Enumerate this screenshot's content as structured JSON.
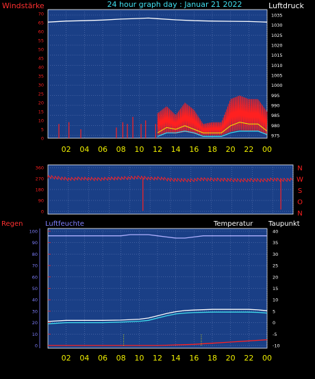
{
  "colors": {
    "bg": "#000000",
    "plot_bg": "#1a3f86",
    "grid": "#6f86bf",
    "red": "#ff2020",
    "yellow": "#f0f000",
    "white": "#ffffff",
    "cyan": "#40e0f0",
    "blue_axis": "#8080ff",
    "dark_red_axis": "#ff3030"
  },
  "header": {
    "left_label": "Windstärke",
    "title": "24 hour graph day : Januar 21 2022",
    "right_label": "Luftdruck"
  },
  "x_axis": {
    "ticks": [
      "02",
      "04",
      "06",
      "08",
      "10",
      "12",
      "14",
      "16",
      "18",
      "20",
      "22",
      "00"
    ]
  },
  "chart_data": [
    {
      "type": "line",
      "id": "wind_pressure",
      "title": "24 hour graph day : Januar 21 2022",
      "y_left": {
        "label": "Windstärke",
        "min": 0,
        "max": 70,
        "ticks": [
          0,
          5,
          10,
          15,
          20,
          25,
          30,
          35,
          40,
          45,
          50,
          55,
          60,
          65,
          70
        ]
      },
      "y_right": {
        "label": "Luftdruck",
        "min": 975,
        "max": 1035,
        "ticks": [
          975,
          980,
          985,
          990,
          995,
          1000,
          1005,
          1010,
          1015,
          1020,
          1025,
          1030,
          1035
        ]
      },
      "pressure": {
        "hours": [
          0,
          2,
          4,
          6,
          8,
          10,
          11,
          12,
          14,
          16,
          18,
          20,
          22,
          24
        ],
        "values": [
          1031.5,
          1032,
          1032.2,
          1032.5,
          1033,
          1033.3,
          1033.5,
          1033.2,
          1032.6,
          1032.2,
          1032,
          1031.9,
          1031.8,
          1031.5
        ]
      },
      "gust_spikes": {
        "hours": [
          1.2,
          2.3,
          3.6,
          7.5,
          8.2,
          8.7,
          9.3,
          10.2,
          10.7,
          11.8
        ],
        "values": [
          8,
          9,
          5,
          6,
          9,
          8,
          12,
          8,
          10,
          8
        ]
      },
      "wind_envelope": {
        "hours": [
          12,
          13,
          14,
          15,
          16,
          17,
          18,
          19,
          20,
          21,
          22,
          23,
          24
        ],
        "values": [
          14,
          18,
          13,
          20,
          16,
          8,
          9,
          9,
          22,
          24,
          22,
          22,
          15
        ]
      },
      "wind_base": {
        "hours": [
          12,
          13,
          14,
          15,
          16,
          17,
          18,
          19,
          20,
          21,
          22,
          23,
          24
        ],
        "values": [
          3,
          6,
          5,
          7,
          5,
          3,
          3,
          3,
          7,
          9,
          8,
          8,
          4
        ]
      },
      "wind_avg": {
        "hours": [
          12,
          13,
          14,
          15,
          16,
          17,
          18,
          19,
          20,
          21,
          22,
          23,
          24
        ],
        "values": [
          1,
          3,
          3,
          4,
          3,
          1,
          1,
          1,
          3,
          4,
          4,
          4,
          2
        ]
      }
    },
    {
      "type": "scatter",
      "id": "wind_direction",
      "y_range": [
        0,
        360
      ],
      "y_ticks": [
        0,
        90,
        180,
        270,
        360
      ],
      "compass": [
        "N",
        "W",
        "S",
        "O",
        "N"
      ],
      "base_direction": 270,
      "direction_series": {
        "hours": [
          0,
          1,
          2,
          3,
          4,
          5,
          6,
          7,
          8,
          9,
          10,
          11,
          12,
          13,
          14,
          15,
          16,
          17,
          18,
          19,
          20,
          21,
          22,
          23,
          24
        ],
        "values": [
          285,
          275,
          265,
          270,
          268,
          265,
          270,
          272,
          275,
          280,
          270,
          272,
          260,
          258,
          255,
          265,
          262,
          260,
          258,
          255,
          258,
          255,
          262,
          258,
          262
        ]
      },
      "dips": {
        "hours": [
          9.3,
          22.8
        ],
        "values": [
          5,
          15
        ]
      }
    },
    {
      "type": "line",
      "id": "rain_humidity_temp",
      "series_names": {
        "regen": "Regen",
        "luftfeuchte": "Luftfeuchte",
        "temperatur": "Temperatur",
        "taupunkt": "Taupunkt"
      },
      "y_regen": {
        "min": 0,
        "max": 100,
        "ticks": [
          0,
          10,
          20,
          30,
          40,
          50,
          60,
          70,
          80,
          90,
          100
        ]
      },
      "y_luftfeuchte": {
        "min": 0,
        "max": 100
      },
      "y_temp": {
        "min": -10,
        "max": 40,
        "ticks": [
          -10,
          -5,
          0,
          5,
          10,
          15,
          20,
          25,
          30,
          35,
          40
        ]
      },
      "luftfeuchte": {
        "hours": [
          0,
          2,
          4,
          6,
          8,
          9,
          10,
          11,
          12,
          13,
          14,
          15,
          16,
          17,
          18,
          20,
          22,
          24
        ],
        "values": [
          96,
          96,
          96,
          96,
          96,
          97,
          97,
          97,
          96,
          95,
          94,
          94,
          95,
          96,
          96,
          96,
          96,
          96
        ]
      },
      "temperatur": {
        "hours": [
          0,
          2,
          4,
          6,
          8,
          10,
          11,
          12,
          13,
          14,
          15,
          16,
          18,
          20,
          22,
          23,
          24
        ],
        "values": [
          0.5,
          1,
          1,
          1,
          1.1,
          1.5,
          2,
          3,
          4,
          4.8,
          5.3,
          5.5,
          5.8,
          5.8,
          5.8,
          5.6,
          5.2
        ]
      },
      "taupunkt": {
        "hours": [
          0,
          2,
          4,
          6,
          8,
          10,
          11,
          12,
          13,
          14,
          15,
          16,
          18,
          20,
          22,
          23,
          24
        ],
        "values": [
          -0.5,
          0,
          0,
          0,
          0.2,
          0.6,
          1,
          2,
          3,
          3.8,
          4.2,
          4.4,
          4.6,
          4.6,
          4.6,
          4.5,
          4.2
        ]
      },
      "regen": {
        "hours": [
          0,
          12,
          14,
          16,
          18,
          20,
          22,
          24
        ],
        "values": [
          0,
          0,
          0.5,
          1,
          2,
          3,
          4,
          5
        ]
      },
      "rain_markers_hours": [
        8.3,
        16.8
      ]
    }
  ]
}
